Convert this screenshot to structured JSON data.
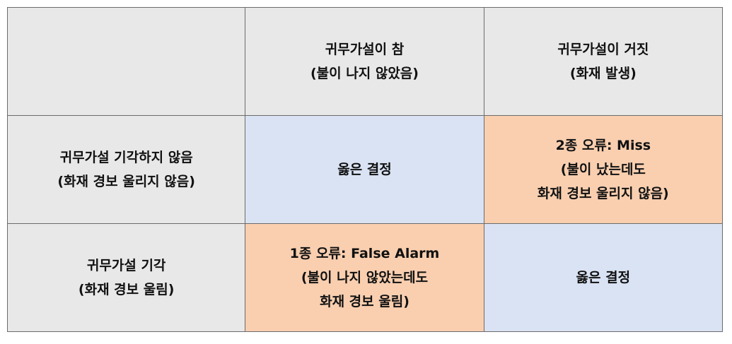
{
  "header": {
    "corner": "",
    "col_true": [
      "귀무가설이 참",
      "(불이 나지 않았음)"
    ],
    "col_false": [
      "귀무가설이 거짓",
      "(화재 발생)"
    ]
  },
  "rows": [
    {
      "label": [
        "귀무가설 기각하지 않음",
        "(화재 경보 울리지 않음)"
      ],
      "cell_true": [
        "옳은 결정"
      ],
      "cell_false": [
        "2종 오류: Miss",
        "(불이 났는데도",
        "화재 경보 울리지 않음)"
      ]
    },
    {
      "label": [
        "귀무가설 기각",
        "(화재 경보 울림)"
      ],
      "cell_true": [
        "1종 오류: False Alarm",
        "(불이 나지 않았는데도",
        "화재 경보 울림)"
      ],
      "cell_false": [
        "옳은 결정"
      ]
    }
  ],
  "colors": {
    "header_bg": "#e8e8e8",
    "correct_bg": "#dae3f3",
    "error_bg": "#f9cfb0",
    "border": "#6b6b6b"
  }
}
